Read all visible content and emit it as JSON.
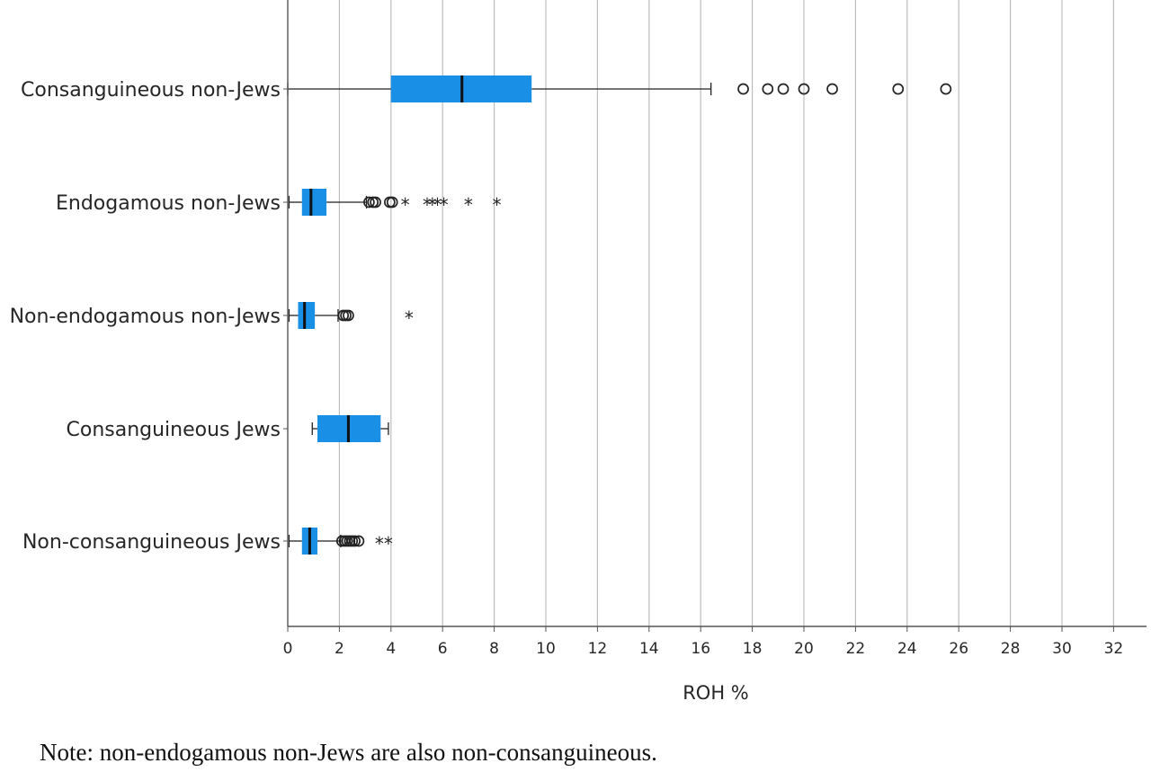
{
  "chart_data": {
    "type": "boxplot",
    "orientation": "horizontal",
    "xlabel": "ROH %",
    "xlim": [
      0,
      33
    ],
    "xticks": [
      "0",
      "2",
      "4",
      "6",
      "8",
      "10",
      "12",
      "14",
      "16",
      "18",
      "20",
      "22",
      "24",
      "26",
      "28",
      "30",
      "32"
    ],
    "grid": "vertical",
    "box_color": "#1a8fe6",
    "categories": [
      "Consanguineous non-Jews",
      "Endogamous non-Jews",
      "Non-endogamous non-Jews",
      "Consanguineous Jews",
      "Non-consanguineous Jews"
    ],
    "boxes": [
      {
        "whisker_low": 0.0,
        "q1": 4.0,
        "median": 6.75,
        "q3": 9.45,
        "whisker_high": 16.4,
        "outliers": [
          17.65,
          18.6,
          19.2,
          20.0,
          21.1,
          23.65,
          25.5
        ],
        "extremes": []
      },
      {
        "whisker_low": 0.05,
        "q1": 0.55,
        "median": 0.9,
        "q3": 1.5,
        "whisker_high": 3.05,
        "outliers": [
          3.15,
          3.3,
          3.4,
          3.95,
          4.05
        ],
        "extremes": [
          4.55,
          5.4,
          5.6,
          5.8,
          6.05,
          7.0,
          8.1
        ]
      },
      {
        "whisker_low": 0.05,
        "q1": 0.4,
        "median": 0.65,
        "q3": 1.05,
        "whisker_high": 1.95,
        "outliers": [
          2.15,
          2.25,
          2.35
        ],
        "extremes": [
          4.7
        ]
      },
      {
        "whisker_low": 0.95,
        "q1": 1.15,
        "median": 2.35,
        "q3": 3.6,
        "whisker_high": 3.9,
        "outliers": [],
        "extremes": []
      },
      {
        "whisker_low": 0.05,
        "q1": 0.55,
        "median": 0.85,
        "q3": 1.15,
        "whisker_high": 2.05,
        "outliers": [
          2.1,
          2.2,
          2.3,
          2.4,
          2.5,
          2.6,
          2.75
        ],
        "extremes": [
          3.55,
          3.9
        ]
      }
    ]
  },
  "note": "Note: non-endogamous non-Jews are also non-consanguineous."
}
